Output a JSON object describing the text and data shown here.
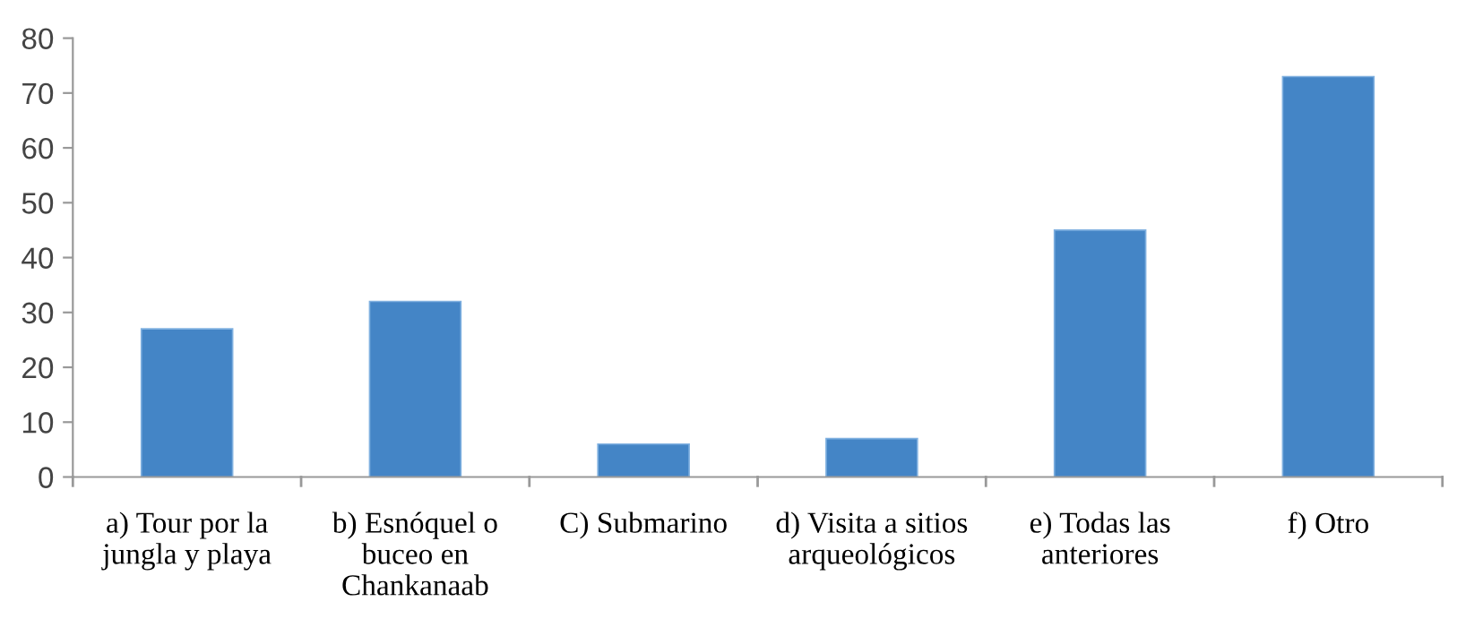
{
  "chart_data": {
    "type": "bar",
    "categories": [
      "a) Tour por la jungla y playa",
      "b) Esnóquel o buceo en Chankanaab",
      "C) Submarino",
      "d) Visita a sitios arqueológicos",
      "e) Todas las anteriores",
      "f) Otro"
    ],
    "values": [
      27,
      32,
      6,
      7,
      45,
      73
    ],
    "color": "#4485c6",
    "ylim": [
      0,
      80
    ],
    "yticks": [
      0,
      10,
      20,
      30,
      40,
      50,
      60,
      70,
      80
    ],
    "grid": false
  }
}
